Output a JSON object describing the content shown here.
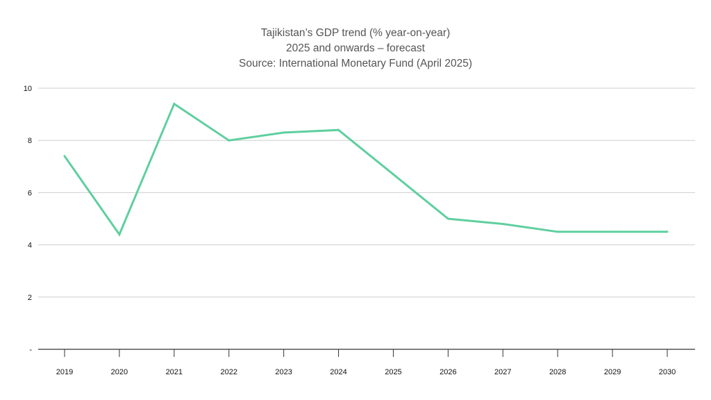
{
  "chart_data": {
    "type": "line",
    "title_lines": [
      "Tajikistan’s GDP trend (% year-on-year)",
      "2025 and onwards – forecast",
      "Source: International Monetary Fund (April 2025)"
    ],
    "xlabel": "",
    "ylabel": "",
    "categories": [
      "2019",
      "2020",
      "2021",
      "2022",
      "2023",
      "2024",
      "2025",
      "2026",
      "2027",
      "2028",
      "2029",
      "2030"
    ],
    "series": [
      {
        "values": [
          7.4,
          4.4,
          9.4,
          8.0,
          8.3,
          8.4,
          6.7,
          5.0,
          4.8,
          4.5,
          4.5,
          4.5
        ],
        "color": "#5fcf9f"
      }
    ],
    "ylim": [
      0,
      10
    ],
    "yticks": [
      0,
      2,
      4,
      6,
      8,
      10
    ],
    "ytick_labels": [
      "-",
      "2",
      "4",
      "6",
      "8",
      "10"
    ],
    "grid": true,
    "legend": "none",
    "gridline_color": "#cfcfcf",
    "axis_color": "#333333"
  }
}
